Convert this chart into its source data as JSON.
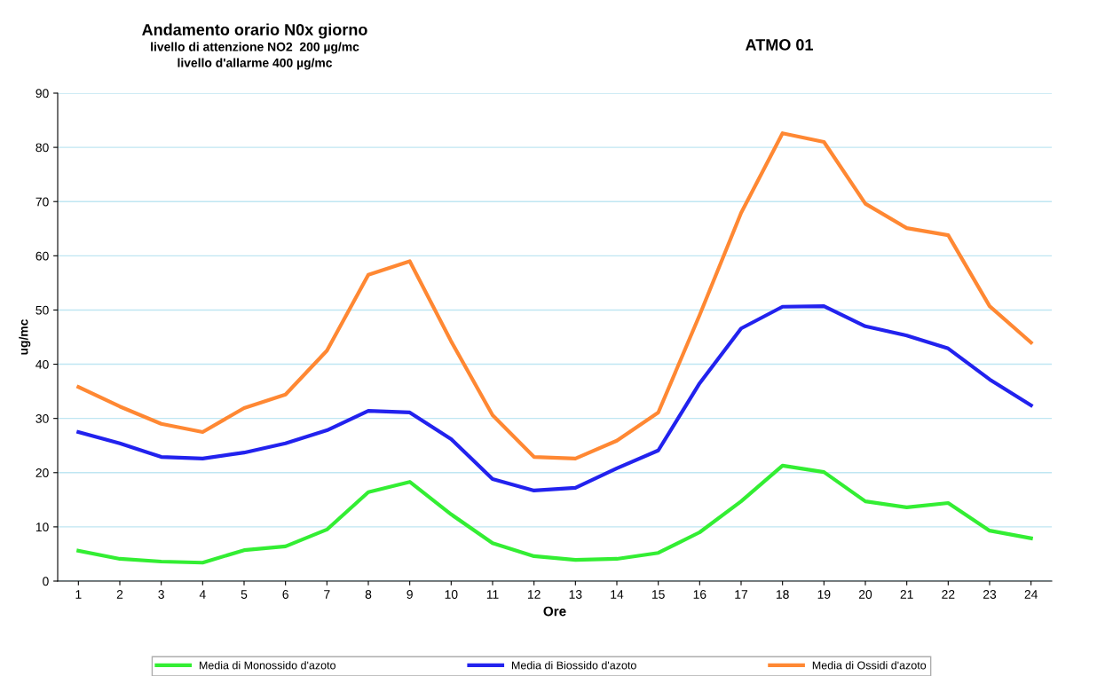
{
  "chart_data": {
    "type": "line",
    "title": "Andamento orario N0x giorno",
    "subtitle": "livello di attenzione NO2  200 µg/mc\nlivello d'allarme 400 µg/mc",
    "annotations": [
      "ATMO 01"
    ],
    "xlabel": "Ore",
    "ylabel": "ug/mc",
    "categories": [
      "1",
      "2",
      "3",
      "4",
      "5",
      "6",
      "7",
      "8",
      "9",
      "10",
      "11",
      "12",
      "13",
      "14",
      "15",
      "16",
      "17",
      "18",
      "19",
      "20",
      "21",
      "22",
      "23",
      "24"
    ],
    "series": [
      {
        "name": "Media di Monossido d'azoto",
        "color": "#33ee33",
        "values": [
          5.6,
          4.1,
          3.6,
          3.4,
          5.7,
          6.4,
          9.5,
          16.4,
          18.3,
          12.3,
          7,
          4.6,
          3.9,
          4.1,
          5.2,
          9,
          14.7,
          21.3,
          20.1,
          14.7,
          13.6,
          14.4,
          9.3,
          7.9
        ]
      },
      {
        "name": "Media di Biossido d'azoto",
        "color": "#2222ee",
        "values": [
          27.5,
          25.4,
          22.9,
          22.6,
          23.7,
          25.4,
          27.8,
          31.4,
          31.1,
          26.2,
          18.8,
          16.7,
          17.2,
          20.8,
          24.1,
          36.5,
          46.6,
          50.6,
          50.7,
          47,
          45.3,
          42.9,
          37.2,
          32.4
        ]
      },
      {
        "name": "Media di Ossidi d'azoto",
        "color": "#ff8833",
        "values": [
          35.8,
          32.2,
          29,
          27.5,
          31.9,
          34.4,
          42.5,
          56.5,
          59,
          44.2,
          30.6,
          22.9,
          22.6,
          25.9,
          31.1,
          49.1,
          67.9,
          82.6,
          81,
          69.6,
          65.1,
          63.8,
          50.7,
          44
        ]
      }
    ],
    "ylim": [
      0,
      90
    ],
    "yticks": [
      0,
      10,
      20,
      30,
      40,
      50,
      60,
      70,
      80,
      90
    ],
    "grid": "y",
    "legend": "bottom",
    "marker": "none",
    "line_style": "solid"
  }
}
